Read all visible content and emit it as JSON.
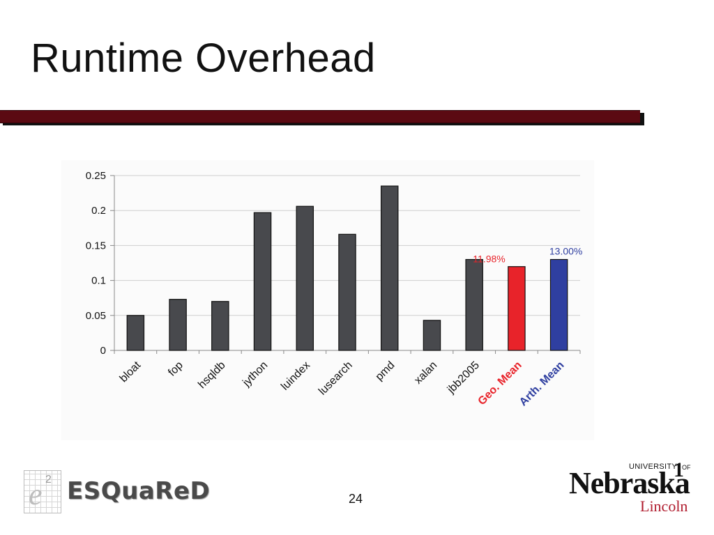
{
  "slide": {
    "title": "Runtime Overhead",
    "page_number": "24"
  },
  "logos": {
    "left": {
      "text": "ESQuaReD",
      "mark_letter": "e",
      "mark_superscript": "2"
    },
    "right": {
      "university": "UNIVERSITY",
      "of": "OF",
      "numeral": "1",
      "name": "Nebraska",
      "campus": "Lincoln"
    }
  },
  "colors": {
    "title_rule": "#5b0a12",
    "bar_default": "#48494d",
    "geo_mean": "#e8232a",
    "arth_mean": "#2f3fa0"
  },
  "chart_data": {
    "type": "bar",
    "categories": [
      "bloat",
      "fop",
      "hsqldb",
      "jython",
      "luindex",
      "lusearch",
      "pmd",
      "xalan",
      "jbb2005",
      "Geo. Mean",
      "Arth. Mean"
    ],
    "values": [
      0.05,
      0.073,
      0.07,
      0.197,
      0.206,
      0.166,
      0.235,
      0.043,
      0.13,
      0.1198,
      0.13
    ],
    "bar_colors": [
      "#48494d",
      "#48494d",
      "#48494d",
      "#48494d",
      "#48494d",
      "#48494d",
      "#48494d",
      "#48494d",
      "#48494d",
      "#e8232a",
      "#2f3fa0"
    ],
    "label_colors": [
      "#111111",
      "#111111",
      "#111111",
      "#111111",
      "#111111",
      "#111111",
      "#111111",
      "#111111",
      "#111111",
      "#e8232a",
      "#2f3fa0"
    ],
    "label_bold": [
      false,
      false,
      false,
      false,
      false,
      false,
      false,
      false,
      false,
      true,
      true
    ],
    "data_labels": [
      {
        "category": "Geo. Mean",
        "text": "11.98%",
        "color": "#e8232a"
      },
      {
        "category": "Arth. Mean",
        "text": "13.00%",
        "color": "#2f3fa0"
      }
    ],
    "yticks": [
      "0",
      "0.05",
      "0.1",
      "0.15",
      "0.2",
      "0.25"
    ],
    "ylim": [
      0,
      0.25
    ],
    "grid": true,
    "title": "",
    "xlabel": "",
    "ylabel": ""
  }
}
